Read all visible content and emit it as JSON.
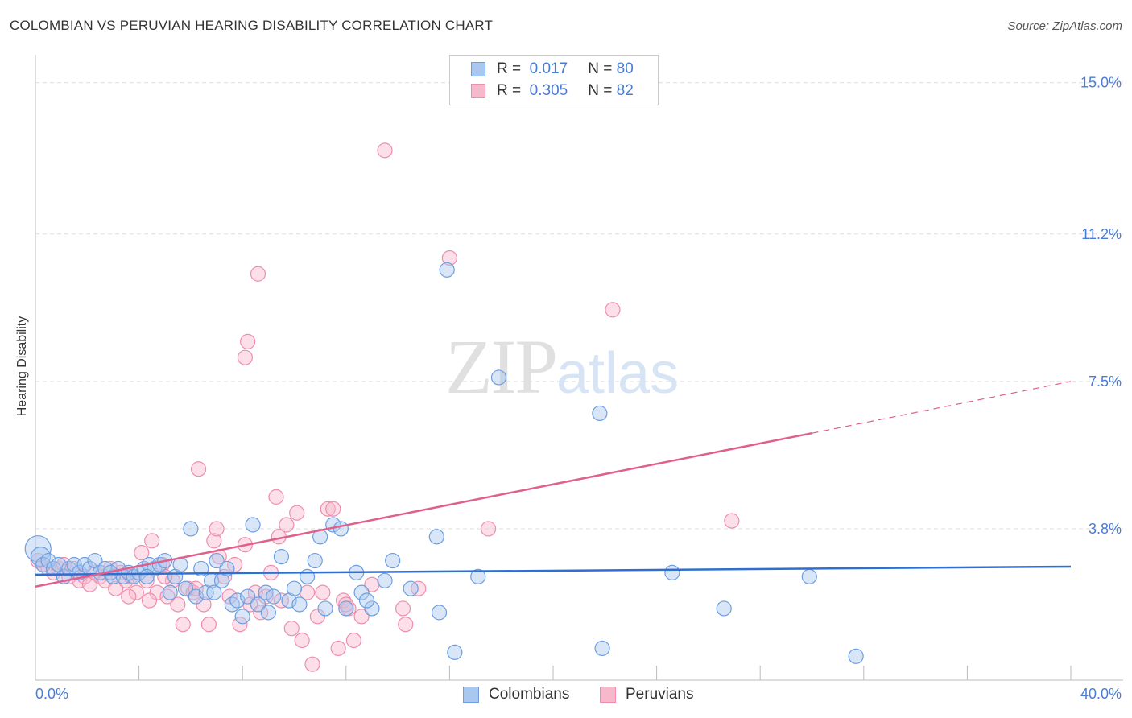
{
  "title": "COLOMBIAN VS PERUVIAN HEARING DISABILITY CORRELATION CHART",
  "source": "Source: ZipAtlas.com",
  "watermark": {
    "zip": "ZIP",
    "atlas": "atlas"
  },
  "legend": {
    "r_label": "R =",
    "n_label": "N =",
    "rows": [
      {
        "r": "0.017",
        "n": "80"
      },
      {
        "r": "0.305",
        "n": "82"
      }
    ]
  },
  "colors": {
    "colombians_fill": "#a8c8f0",
    "colombians_stroke": "#6e9ee0",
    "colombians_line": "#2f6fd0",
    "peruvians_fill": "#f8b8cc",
    "peruvians_stroke": "#ee8eac",
    "peruvians_line": "#e0608c",
    "tick_text": "#4a7cd6"
  },
  "chart_data": {
    "type": "scatter",
    "title": "COLOMBIAN VS PERUVIAN HEARING DISABILITY CORRELATION CHART",
    "xlabel": "",
    "ylabel": "Hearing Disability",
    "xlim": [
      0,
      40
    ],
    "ylim": [
      0,
      15.5
    ],
    "x_tick_labels": [
      "0.0%",
      "40.0%"
    ],
    "y_ticks": [
      3.8,
      7.5,
      11.2,
      15.0
    ],
    "y_tick_labels": [
      "3.8%",
      "7.5%",
      "11.2%",
      "15.0%"
    ],
    "grid": true,
    "legend_position": "top-center",
    "series": [
      {
        "name": "Colombians",
        "trend": {
          "x0": 0,
          "y0": 2.65,
          "x1": 40,
          "y1": 2.85
        },
        "points": [
          [
            0.1,
            3.3
          ],
          [
            0.2,
            3.1
          ],
          [
            0.3,
            2.9
          ],
          [
            0.5,
            3.0
          ],
          [
            0.7,
            2.8
          ],
          [
            0.9,
            2.9
          ],
          [
            1.1,
            2.6
          ],
          [
            1.3,
            2.8
          ],
          [
            1.5,
            2.9
          ],
          [
            1.7,
            2.7
          ],
          [
            1.9,
            2.9
          ],
          [
            2.1,
            2.8
          ],
          [
            2.3,
            3.0
          ],
          [
            2.5,
            2.7
          ],
          [
            2.7,
            2.8
          ],
          [
            3.0,
            2.6
          ],
          [
            3.2,
            2.8
          ],
          [
            3.4,
            2.6
          ],
          [
            3.6,
            2.7
          ],
          [
            3.8,
            2.6
          ],
          [
            4.0,
            2.7
          ],
          [
            4.2,
            2.8
          ],
          [
            4.4,
            2.9
          ],
          [
            4.6,
            2.8
          ],
          [
            4.8,
            2.9
          ],
          [
            5.0,
            3.0
          ],
          [
            5.2,
            2.2
          ],
          [
            5.4,
            2.6
          ],
          [
            5.6,
            2.9
          ],
          [
            5.8,
            2.3
          ],
          [
            6.0,
            3.8
          ],
          [
            6.2,
            2.1
          ],
          [
            6.4,
            2.8
          ],
          [
            6.6,
            2.2
          ],
          [
            6.8,
            2.5
          ],
          [
            7.0,
            3.0
          ],
          [
            7.2,
            2.5
          ],
          [
            7.4,
            2.8
          ],
          [
            7.6,
            1.9
          ],
          [
            7.8,
            2.0
          ],
          [
            8.0,
            1.6
          ],
          [
            8.2,
            2.1
          ],
          [
            8.4,
            3.9
          ],
          [
            8.6,
            1.9
          ],
          [
            8.9,
            2.2
          ],
          [
            9.2,
            2.1
          ],
          [
            9.5,
            3.1
          ],
          [
            9.8,
            2.0
          ],
          [
            10.0,
            2.3
          ],
          [
            10.2,
            1.9
          ],
          [
            10.5,
            2.6
          ],
          [
            10.8,
            3.0
          ],
          [
            11.0,
            3.6
          ],
          [
            11.2,
            1.8
          ],
          [
            11.5,
            3.9
          ],
          [
            11.8,
            3.8
          ],
          [
            12.0,
            1.8
          ],
          [
            12.4,
            2.7
          ],
          [
            12.6,
            2.2
          ],
          [
            13.0,
            1.8
          ],
          [
            13.5,
            2.5
          ],
          [
            13.8,
            3.0
          ],
          [
            14.5,
            2.3
          ],
          [
            15.5,
            3.6
          ],
          [
            15.6,
            1.7
          ],
          [
            15.9,
            10.3
          ],
          [
            16.2,
            0.7
          ],
          [
            17.1,
            2.6
          ],
          [
            17.9,
            7.6
          ],
          [
            21.8,
            6.7
          ],
          [
            21.9,
            0.8
          ],
          [
            24.6,
            2.7
          ],
          [
            26.6,
            1.8
          ],
          [
            29.9,
            2.6
          ],
          [
            31.7,
            0.6
          ],
          [
            2.9,
            2.7
          ],
          [
            4.3,
            2.6
          ],
          [
            6.9,
            2.2
          ],
          [
            9.0,
            1.7
          ],
          [
            12.8,
            2.0
          ]
        ]
      },
      {
        "name": "Peruvians",
        "trend": {
          "x0": 0,
          "y0": 2.35,
          "x1": 30,
          "y1": 6.2,
          "dashed_to_x": 40,
          "dashed_to_y": 7.5
        },
        "points": [
          [
            0.1,
            3.0
          ],
          [
            0.3,
            2.9
          ],
          [
            0.5,
            2.8
          ],
          [
            0.7,
            2.7
          ],
          [
            0.9,
            2.8
          ],
          [
            1.1,
            2.9
          ],
          [
            1.3,
            2.6
          ],
          [
            1.5,
            2.8
          ],
          [
            1.7,
            2.5
          ],
          [
            1.9,
            2.6
          ],
          [
            2.1,
            2.4
          ],
          [
            2.3,
            2.7
          ],
          [
            2.5,
            2.6
          ],
          [
            2.7,
            2.5
          ],
          [
            2.9,
            2.8
          ],
          [
            3.1,
            2.3
          ],
          [
            3.3,
            2.7
          ],
          [
            3.5,
            2.5
          ],
          [
            3.7,
            2.6
          ],
          [
            3.9,
            2.2
          ],
          [
            4.1,
            3.2
          ],
          [
            4.3,
            2.5
          ],
          [
            4.5,
            3.5
          ],
          [
            4.7,
            2.2
          ],
          [
            4.9,
            2.9
          ],
          [
            5.1,
            2.1
          ],
          [
            5.3,
            2.5
          ],
          [
            5.5,
            1.9
          ],
          [
            5.7,
            1.4
          ],
          [
            5.9,
            2.3
          ],
          [
            6.1,
            2.2
          ],
          [
            6.3,
            5.3
          ],
          [
            6.5,
            1.9
          ],
          [
            6.7,
            1.4
          ],
          [
            6.9,
            3.5
          ],
          [
            7.1,
            3.1
          ],
          [
            7.3,
            2.6
          ],
          [
            7.5,
            2.1
          ],
          [
            7.7,
            2.9
          ],
          [
            7.9,
            1.4
          ],
          [
            8.1,
            3.4
          ],
          [
            8.3,
            1.9
          ],
          [
            8.5,
            2.2
          ],
          [
            8.7,
            1.7
          ],
          [
            8.9,
            2.1
          ],
          [
            9.1,
            2.7
          ],
          [
            9.3,
            4.6
          ],
          [
            9.5,
            2.0
          ],
          [
            9.7,
            3.9
          ],
          [
            9.9,
            1.3
          ],
          [
            10.1,
            4.2
          ],
          [
            10.3,
            1.0
          ],
          [
            10.5,
            2.2
          ],
          [
            10.7,
            0.4
          ],
          [
            10.9,
            1.6
          ],
          [
            11.1,
            2.2
          ],
          [
            11.3,
            4.3
          ],
          [
            11.5,
            4.3
          ],
          [
            11.7,
            0.8
          ],
          [
            11.9,
            2.0
          ],
          [
            12.1,
            1.8
          ],
          [
            12.3,
            1.0
          ],
          [
            12.6,
            1.6
          ],
          [
            13.0,
            2.4
          ],
          [
            13.5,
            13.3
          ],
          [
            14.2,
            1.8
          ],
          [
            14.3,
            1.4
          ],
          [
            14.8,
            2.3
          ],
          [
            16.0,
            10.6
          ],
          [
            17.5,
            3.8
          ],
          [
            22.3,
            9.3
          ],
          [
            26.9,
            4.0
          ],
          [
            8.1,
            8.1
          ],
          [
            8.2,
            8.5
          ],
          [
            8.6,
            10.2
          ],
          [
            4.4,
            2.0
          ],
          [
            6.2,
            2.3
          ],
          [
            7.0,
            3.8
          ],
          [
            3.6,
            2.1
          ],
          [
            5.0,
            2.6
          ],
          [
            9.4,
            3.6
          ],
          [
            12.0,
            1.9
          ]
        ]
      }
    ]
  }
}
